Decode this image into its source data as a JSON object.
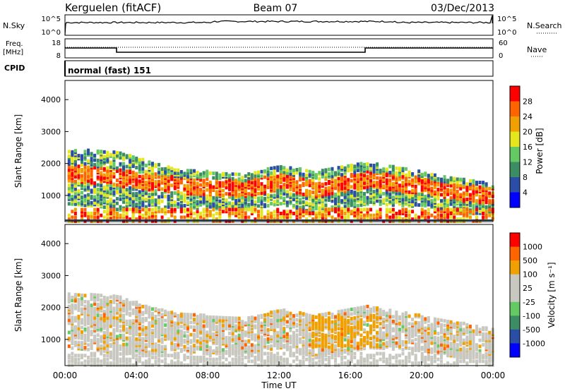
{
  "header": {
    "station": "Kerguelen (fitACF)",
    "beam": "Beam 07",
    "date": "03/Dec/2013"
  },
  "nsky_panel": {
    "label": "N.Sky",
    "y_ticks": [
      "10^5",
      "10^0"
    ],
    "right_ticks": [
      "10^5",
      "10^0"
    ],
    "right_label": "N.Search"
  },
  "freq_panel": {
    "label_line1": "Freq.",
    "label_line2": "[MHz]",
    "y_ticks": [
      "18",
      "8"
    ],
    "right_ticks": [
      "60",
      "0"
    ],
    "right_label": "Nave"
  },
  "cpid": {
    "label": "CPID",
    "value": "normal (fast) 151"
  },
  "chart_data": [
    {
      "type": "heatmap",
      "title": "",
      "xlabel": "",
      "ylabel": "Slant Range [km]",
      "xlim": [
        0,
        24
      ],
      "ylim": [
        180,
        4600
      ],
      "y_ticks": [
        "1000",
        "2000",
        "3000",
        "4000"
      ],
      "colorbar": {
        "label": "Power [dB]",
        "ticks": [
          "4",
          "8",
          "12",
          "16",
          "20",
          "24",
          "28"
        ],
        "colors": [
          "#0000ff",
          "#2a4ea6",
          "#3c8c64",
          "#64c864",
          "#e6e61e",
          "#f0a000",
          "#ff6400",
          "#ff0000"
        ]
      },
      "x": [
        "00:00",
        "02:00",
        "03:00",
        "06:00",
        "10:00",
        "12:00",
        "14:00",
        "17:00",
        "20:00",
        "22:00",
        "24:00"
      ],
      "bands_range_km": [
        [
          2300,
          1200
        ],
        [
          2250,
          1100
        ],
        [
          2200,
          1000
        ],
        [
          1700,
          1100
        ],
        [
          1500,
          1000
        ],
        [
          1800,
          1200
        ],
        [
          1600,
          900
        ],
        [
          1900,
          1200
        ],
        [
          1600,
          1100
        ],
        [
          1400,
          900
        ],
        [
          1200,
          900
        ]
      ]
    },
    {
      "type": "heatmap",
      "title": "",
      "xlabel": "Time UT",
      "ylabel": "Slant Range [km]",
      "xlim": [
        0,
        24
      ],
      "ylim": [
        180,
        4600
      ],
      "y_ticks": [
        "1000",
        "2000",
        "3000",
        "4000"
      ],
      "x_ticks": [
        "00:00",
        "04:00",
        "08:00",
        "12:00",
        "16:00",
        "20:00",
        "00:00"
      ],
      "colorbar": {
        "label": "Velocity [m s⁻¹]",
        "ticks": [
          "1000",
          "500",
          "100",
          "25",
          "-25",
          "-100",
          "-500",
          "-1000"
        ],
        "colors": [
          "#0000ff",
          "#2a4ea6",
          "#3c8c64",
          "#64c864",
          "#c8c8c0",
          "#c8c8c0",
          "#f0a000",
          "#ff6400",
          "#ff0000"
        ]
      }
    }
  ]
}
